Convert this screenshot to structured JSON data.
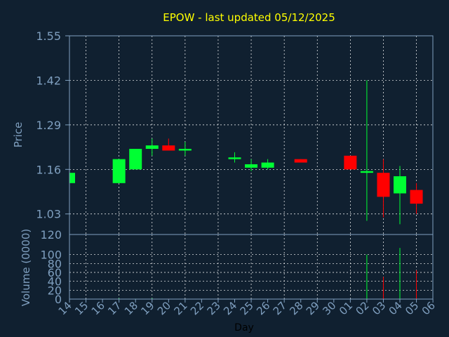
{
  "title": "EPOW - last updated 05/12/2025",
  "colors": {
    "background": "#102030",
    "axis": "#7f9fbf",
    "grid": "#ffffff",
    "up": "#00ff33",
    "down": "#ff0000",
    "title": "#ffff00"
  },
  "chart_data": {
    "type": "candlestick",
    "title": "EPOW - last updated 05/12/2025",
    "xlabel": "Day",
    "price_ylabel": "Price",
    "volume_ylabel": "Volume (0000)",
    "x_tick_labels": [
      "14",
      "15",
      "16",
      "17",
      "18",
      "19",
      "20",
      "21",
      "22",
      "23",
      "24",
      "25",
      "26",
      "27",
      "28",
      "29",
      "30",
      "01",
      "02",
      "03",
      "04",
      "05",
      "06"
    ],
    "price_ylim": [
      0.97,
      1.55
    ],
    "price_yticks": [
      "1.55",
      "1.42",
      "1.29",
      "1.16",
      "1.03"
    ],
    "volume_ylim": [
      0,
      120
    ],
    "volume_yticks": [
      "120",
      "100",
      "80",
      "60",
      "40",
      "20",
      "0"
    ],
    "grid": true,
    "candles": [
      {
        "day": "14",
        "open": 1.12,
        "close": 1.15,
        "high": 1.15,
        "low": 1.12,
        "volume": 0
      },
      {
        "day": "17",
        "open": 1.12,
        "close": 1.19,
        "high": 1.19,
        "low": 1.12,
        "volume": 2
      },
      {
        "day": "18",
        "open": 1.16,
        "close": 1.22,
        "high": 1.22,
        "low": 1.16,
        "volume": 1
      },
      {
        "day": "19",
        "open": 1.22,
        "close": 1.23,
        "high": 1.25,
        "low": 1.2,
        "volume": 2
      },
      {
        "day": "20",
        "open": 1.23,
        "close": 1.215,
        "high": 1.25,
        "low": 1.215,
        "volume": 1
      },
      {
        "day": "21",
        "open": 1.215,
        "close": 1.22,
        "high": 1.24,
        "low": 1.2,
        "volume": 0.5
      },
      {
        "day": "24",
        "open": 1.19,
        "close": 1.195,
        "high": 1.21,
        "low": 1.18,
        "volume": 0.5
      },
      {
        "day": "25",
        "open": 1.165,
        "close": 1.175,
        "high": 1.19,
        "low": 1.155,
        "volume": 0.5
      },
      {
        "day": "26",
        "open": 1.165,
        "close": 1.18,
        "high": 1.19,
        "low": 1.16,
        "volume": 0.5
      },
      {
        "day": "28",
        "open": 1.19,
        "close": 1.18,
        "high": 1.19,
        "low": 1.18,
        "volume": 0.5
      },
      {
        "day": "01",
        "open": 1.2,
        "close": 1.16,
        "high": 1.2,
        "low": 1.16,
        "volume": 0.5
      },
      {
        "day": "02",
        "open": 1.15,
        "close": 1.155,
        "high": 1.42,
        "low": 1.01,
        "volume": 100
      },
      {
        "day": "03",
        "open": 1.15,
        "close": 1.08,
        "high": 1.19,
        "low": 1.02,
        "volume": 50
      },
      {
        "day": "04",
        "open": 1.09,
        "close": 1.14,
        "high": 1.17,
        "low": 1.0,
        "volume": 115
      },
      {
        "day": "05",
        "open": 1.1,
        "close": 1.06,
        "high": 1.12,
        "low": 1.03,
        "volume": 65
      }
    ]
  }
}
